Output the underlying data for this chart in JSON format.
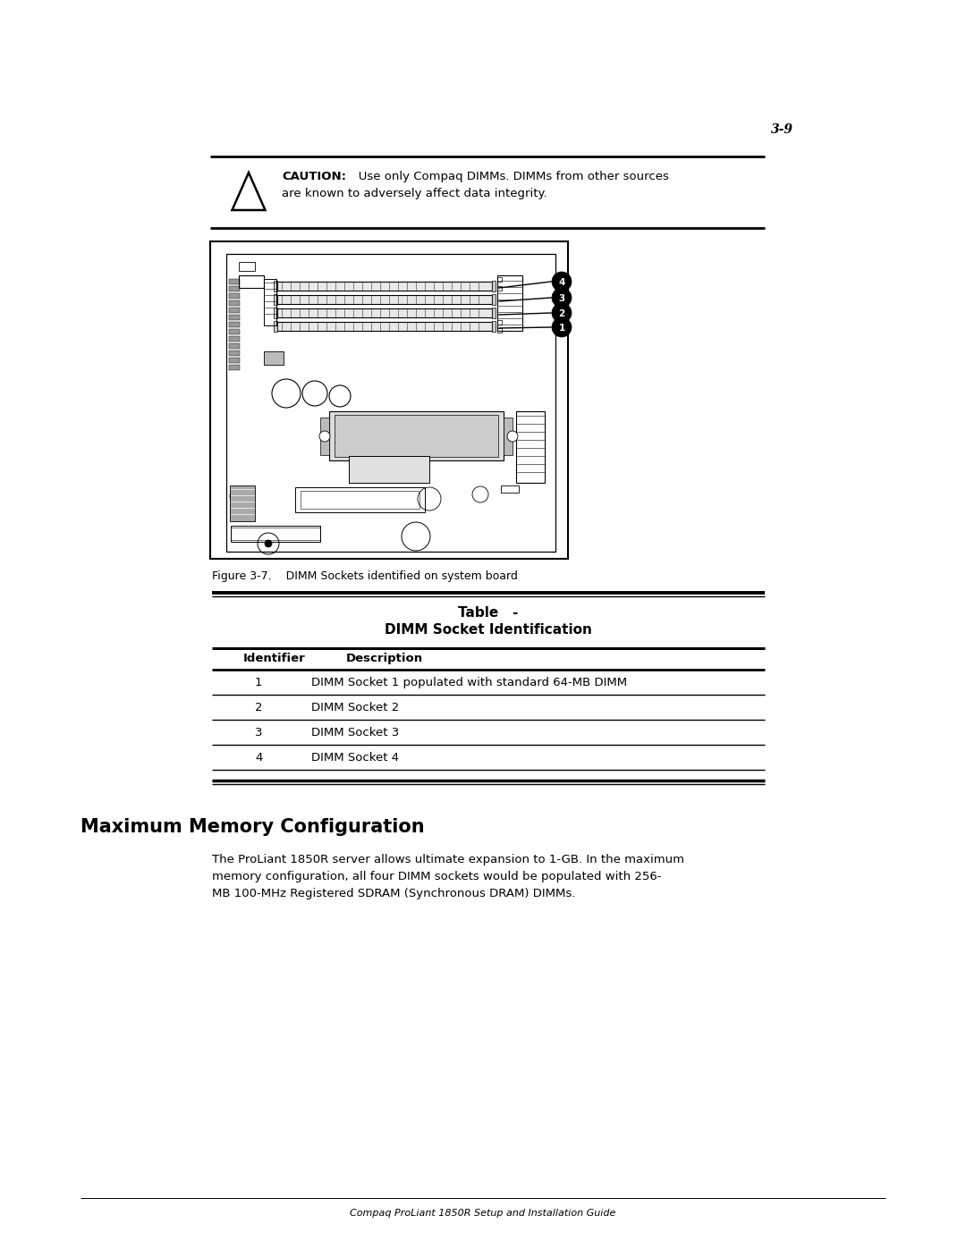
{
  "page_number": "3-9",
  "caution_bold": "CAUTION:",
  "caution_rest": "   Use only Compaq DIMMs. DIMMs from other sources",
  "caution_line2": "are known to adversely affect data integrity.",
  "figure_caption": "Figure 3-7.    DIMM Sockets identified on system board",
  "table_title1": "Table   -",
  "table_title2": "DIMM Socket Identification",
  "col1_header": "Identifier",
  "col2_header": "Description",
  "table_rows": [
    [
      "1",
      "DIMM Socket 1 populated with standard 64-MB DIMM"
    ],
    [
      "2",
      "DIMM Socket 2"
    ],
    [
      "3",
      "DIMM Socket 3"
    ],
    [
      "4",
      "DIMM Socket 4"
    ]
  ],
  "section_title": "Maximum Memory Configuration",
  "body_line1": "The ProLiant 1850R server allows ultimate expansion to 1-GB. In the maximum",
  "body_line2": "memory configuration, all four DIMM sockets would be populated with 256-",
  "body_line3": "MB 100-MHz Registered SDRAM (Synchronous DRAM) DIMMs.",
  "footer_text": "Compaq ProLiant 1850R Setup and Installation Guide",
  "bg_color": "#ffffff"
}
